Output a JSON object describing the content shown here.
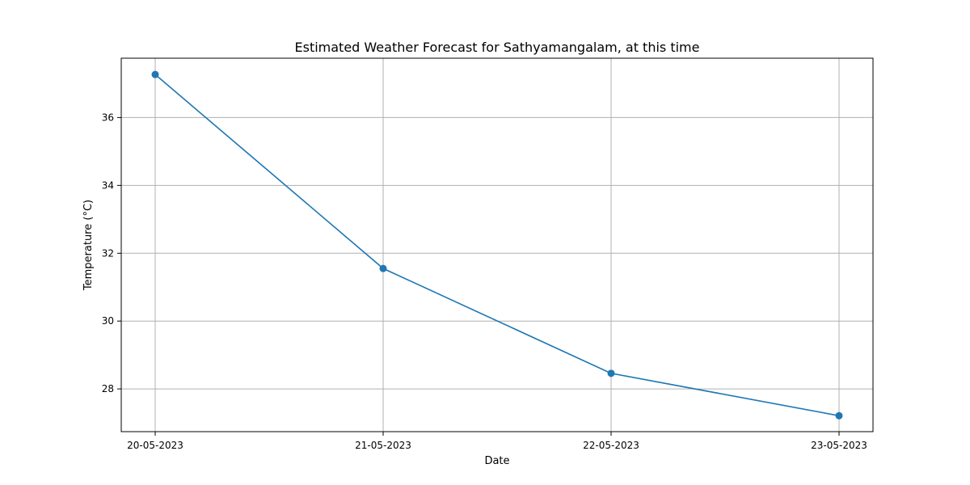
{
  "chart_data": {
    "type": "line",
    "title": "Estimated Weather Forecast for Sathyamangalam, at this time",
    "xlabel": "Date",
    "ylabel": "Temperature (°C)",
    "categories": [
      "20-05-2023",
      "21-05-2023",
      "22-05-2023",
      "23-05-2023"
    ],
    "series": [
      {
        "values": [
          37.27,
          31.55,
          28.46,
          27.21
        ]
      }
    ],
    "yticks": [
      "28",
      "30",
      "32",
      "34",
      "36"
    ],
    "ylim": [
      26.74,
      37.75
    ],
    "grid": true,
    "markers": true,
    "legend": "none"
  },
  "colors": {
    "series": "#1f77b4",
    "grid": "#b0b0b0",
    "axis": "#000000"
  }
}
